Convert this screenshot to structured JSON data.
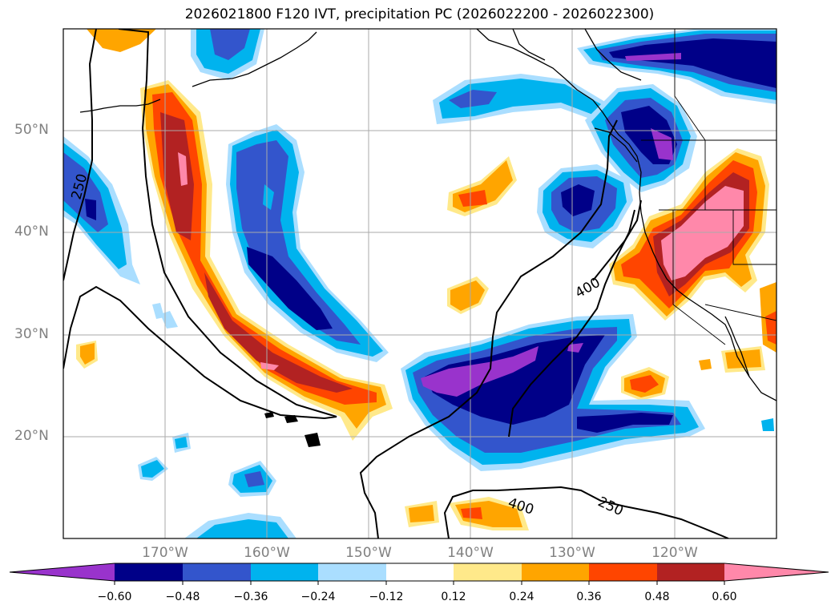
{
  "title": "2026021800 F120 IVT, precipitation PC (2026022200 - 2026022300)",
  "lat_labels": [
    "50°N",
    "40°N",
    "30°N",
    "20°N"
  ],
  "lon_labels": [
    "170°W",
    "160°W",
    "150°W",
    "140°W",
    "130°W",
    "120°W"
  ],
  "contour_labels": [
    "250",
    "400",
    "400",
    "250"
  ],
  "colorbar": {
    "ticks": [
      "−0.60",
      "−0.48",
      "−0.36",
      "−0.24",
      "−0.12",
      "0.12",
      "0.24",
      "0.36",
      "0.48",
      "0.60"
    ],
    "colors": [
      "#9933cc",
      "#000088",
      "#3355cc",
      "#00b3ee",
      "#aadeff",
      "#ffffff",
      "#ffe98a",
      "#ffa500",
      "#ff4500",
      "#b22222",
      "#ff88aa"
    ]
  },
  "colors": {
    "strong_pos_pink": "#ff88aa",
    "pos_darkred": "#b22222",
    "pos_orangered": "#ff4500",
    "pos_orange": "#ffa500",
    "pos_yellow": "#ffe98a",
    "neg_lightblue": "#aadeff",
    "neg_cyan": "#00b3ee",
    "neg_blue": "#3355cc",
    "neg_navy": "#000088",
    "neg_purple": "#9933cc"
  }
}
